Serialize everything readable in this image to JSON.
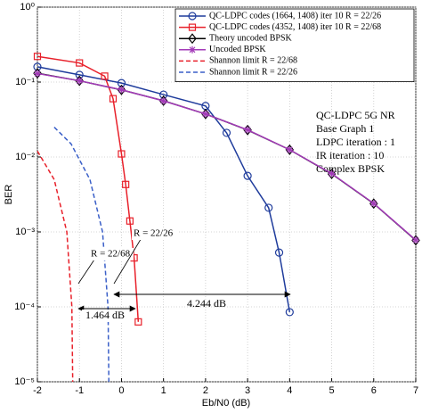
{
  "chart_data": {
    "type": "line",
    "xlabel": "Eb/N0 (dB)",
    "ylabel": "BER",
    "xlim": [
      -2,
      7
    ],
    "xticks": [
      -2,
      -1,
      0,
      1,
      2,
      3,
      4,
      5,
      6,
      7
    ],
    "ylim": [
      1e-05,
      1
    ],
    "log_y": true,
    "grid": true,
    "yticks": [
      {
        "value": 1e-05,
        "label": "10⁻⁵"
      },
      {
        "value": 0.0001,
        "label": "10⁻⁴"
      },
      {
        "value": 0.001,
        "label": "10⁻³"
      },
      {
        "value": 0.01,
        "label": "10⁻²"
      },
      {
        "value": 0.1,
        "label": "10⁻¹"
      },
      {
        "value": 1,
        "label": "10⁰"
      }
    ],
    "legend": "upper right",
    "series": [
      {
        "name": "QC-LDPC codes (1664, 1408) iter 10 R = 22/26",
        "color": "#1f3c9c",
        "marker": "circle",
        "dash": false,
        "x": [
          -2,
          -1,
          0,
          1,
          2,
          2.5,
          3,
          3.5,
          3.75,
          4
        ],
        "values": [
          0.16,
          0.125,
          0.097,
          0.068,
          0.048,
          0.021,
          0.0056,
          0.0021,
          0.00053,
          8.5e-05
        ]
      },
      {
        "name": "QC-LDPC codes (4352, 1408) iter 10 R = 22/68",
        "color": "#e8202a",
        "marker": "square",
        "dash": false,
        "x": [
          -2,
          -1,
          -0.4,
          -0.2,
          0,
          0.1,
          0.2,
          0.3,
          0.4
        ],
        "values": [
          0.22,
          0.18,
          0.12,
          0.06,
          0.011,
          0.0043,
          0.0014,
          0.00045,
          6.3e-05
        ]
      },
      {
        "name": "Theory uncoded BPSK",
        "color": "#000000",
        "marker": "diamond",
        "dash": false,
        "x": [
          -2,
          -1,
          0,
          1,
          2,
          3,
          4,
          5,
          6,
          7
        ],
        "values": [
          0.131,
          0.104,
          0.0786,
          0.0563,
          0.0375,
          0.0229,
          0.0125,
          0.00595,
          0.00239,
          0.000773
        ]
      },
      {
        "name": "Uncoded BPSK",
        "color": "#a33ab8",
        "marker": "star",
        "dash": false,
        "x": [
          -2,
          -1,
          0,
          1,
          2,
          3,
          4,
          5,
          6,
          7
        ],
        "values": [
          0.13,
          0.104,
          0.079,
          0.056,
          0.0375,
          0.023,
          0.0125,
          0.006,
          0.0024,
          0.00078
        ]
      },
      {
        "name": "Shannon limit R = 22/68",
        "color": "#e8202a",
        "marker": "none",
        "dash": true,
        "x": [
          -2,
          -1.6,
          -1.3,
          -1.18,
          -1.16
        ],
        "values": [
          0.012,
          0.005,
          0.001,
          0.0001,
          1e-05
        ]
      },
      {
        "name": "Shannon limit R = 22/26",
        "color": "#3a5fc8",
        "marker": "none",
        "dash": true,
        "x": [
          -1.6,
          -1.2,
          -0.75,
          -0.45,
          -0.32,
          -0.3
        ],
        "values": [
          0.025,
          0.015,
          0.005,
          0.001,
          0.0001,
          1e-05
        ]
      }
    ],
    "annotations": [
      "QC-LDPC 5G NR",
      "Base Graph 1",
      "LDPC iteration : 1",
      "IR iteration : 10",
      "Complex BPSK",
      "4.244 dB",
      "1.464 dB",
      "R = 22/68",
      "R = 22/26"
    ]
  }
}
